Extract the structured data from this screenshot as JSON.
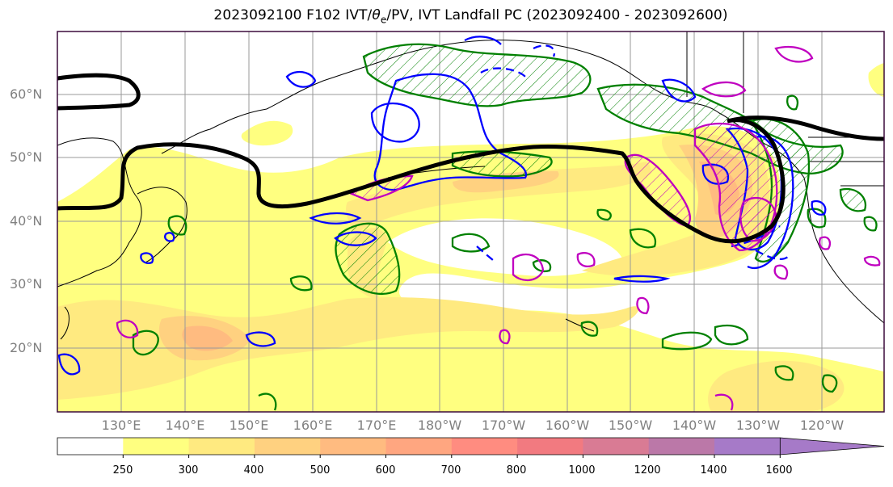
{
  "title": {
    "prefix": "2023092100 F102 IVT/",
    "theta": "θ",
    "sub": "e",
    "suffix": "/PV, IVT Landfall PC (2023092400 - 2023092600)"
  },
  "lat_ticks": [
    "60°N",
    "50°N",
    "40°N",
    "30°N",
    "20°N"
  ],
  "lon_ticks": [
    "130°E",
    "140°E",
    "150°E",
    "160°E",
    "170°E",
    "180°W",
    "170°W",
    "160°W",
    "150°W",
    "140°W",
    "130°W",
    "120°W"
  ],
  "colorbar": {
    "labels": [
      "250",
      "300",
      "400",
      "500",
      "600",
      "700",
      "800",
      "1000",
      "1200",
      "1400",
      "1600"
    ],
    "colors": [
      "#ffffff",
      "#ffff80",
      "#ffea80",
      "#ffd180",
      "#ffbb80",
      "#ffa680",
      "#ff8c80",
      "#f27a80",
      "#d97b94",
      "#bb78a8",
      "#a67ac8"
    ],
    "extend": "max"
  },
  "map": {
    "extent": "120°E – 115°W, 10°N – 70°N",
    "grid": true,
    "fill_field": "IVT",
    "overlay_colors": {
      "pv": "#000000",
      "theta_e_positive": "#008000",
      "theta_e_negative": "#0000ff",
      "landfall_pc": "#c000c0"
    }
  }
}
